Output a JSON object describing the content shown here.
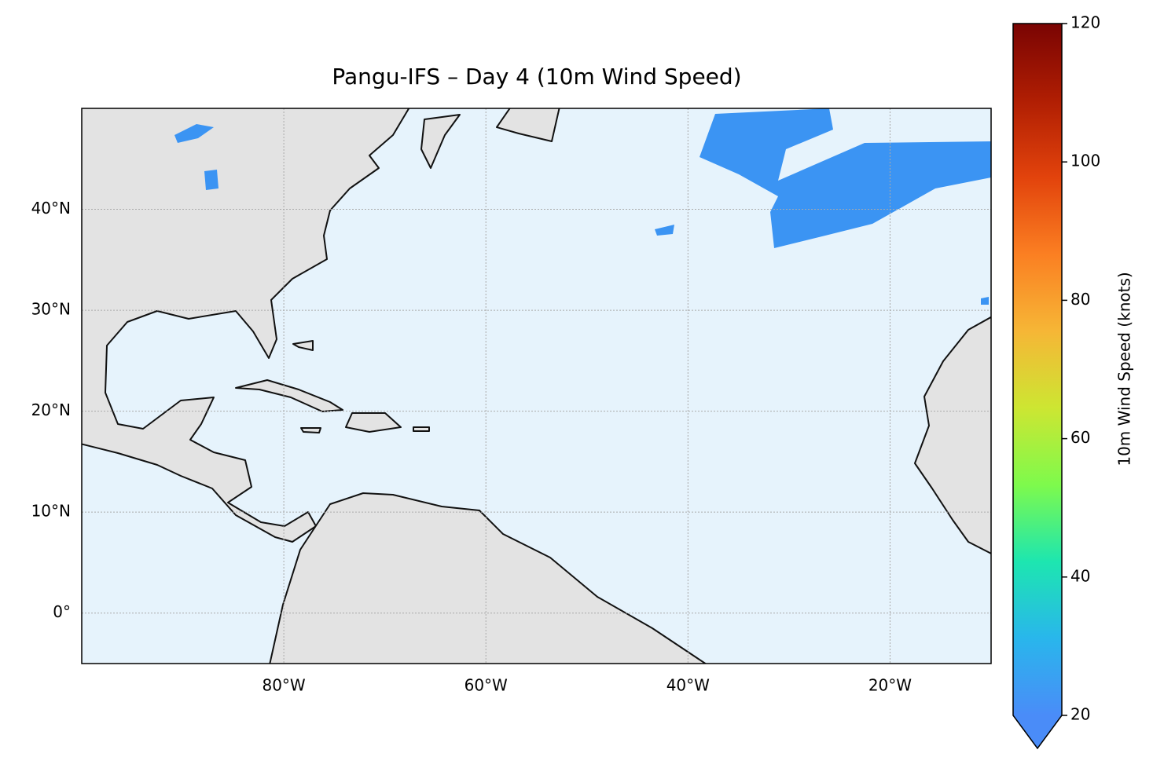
{
  "chart_data": {
    "type": "map",
    "title": "Pangu-IFS – Day 4 (10m Wind Speed)",
    "xlim": [
      -100,
      -10
    ],
    "ylim": [
      -5,
      50
    ],
    "xticks": [
      {
        "value": -80,
        "label": "80°W"
      },
      {
        "value": -60,
        "label": "60°W"
      },
      {
        "value": -40,
        "label": "40°W"
      },
      {
        "value": -20,
        "label": "20°W"
      }
    ],
    "yticks": [
      {
        "value": 0,
        "label": "0°"
      },
      {
        "value": 10,
        "label": "10°N"
      },
      {
        "value": 20,
        "label": "20°N"
      },
      {
        "value": 30,
        "label": "30°N"
      },
      {
        "value": 40,
        "label": "40°N"
      }
    ],
    "grid": true,
    "colorbar": {
      "label": "10m Wind Speed (knots)",
      "lim": [
        20,
        120
      ],
      "ticks": [
        20,
        40,
        60,
        80,
        100,
        120
      ],
      "colors": [
        "#4a8cf8",
        "#29b6ec",
        "#1de6b0",
        "#7efa4c",
        "#cde632",
        "#f6b636",
        "#fb7f22",
        "#e2430c",
        "#b01e03",
        "#7a0403"
      ]
    }
  }
}
